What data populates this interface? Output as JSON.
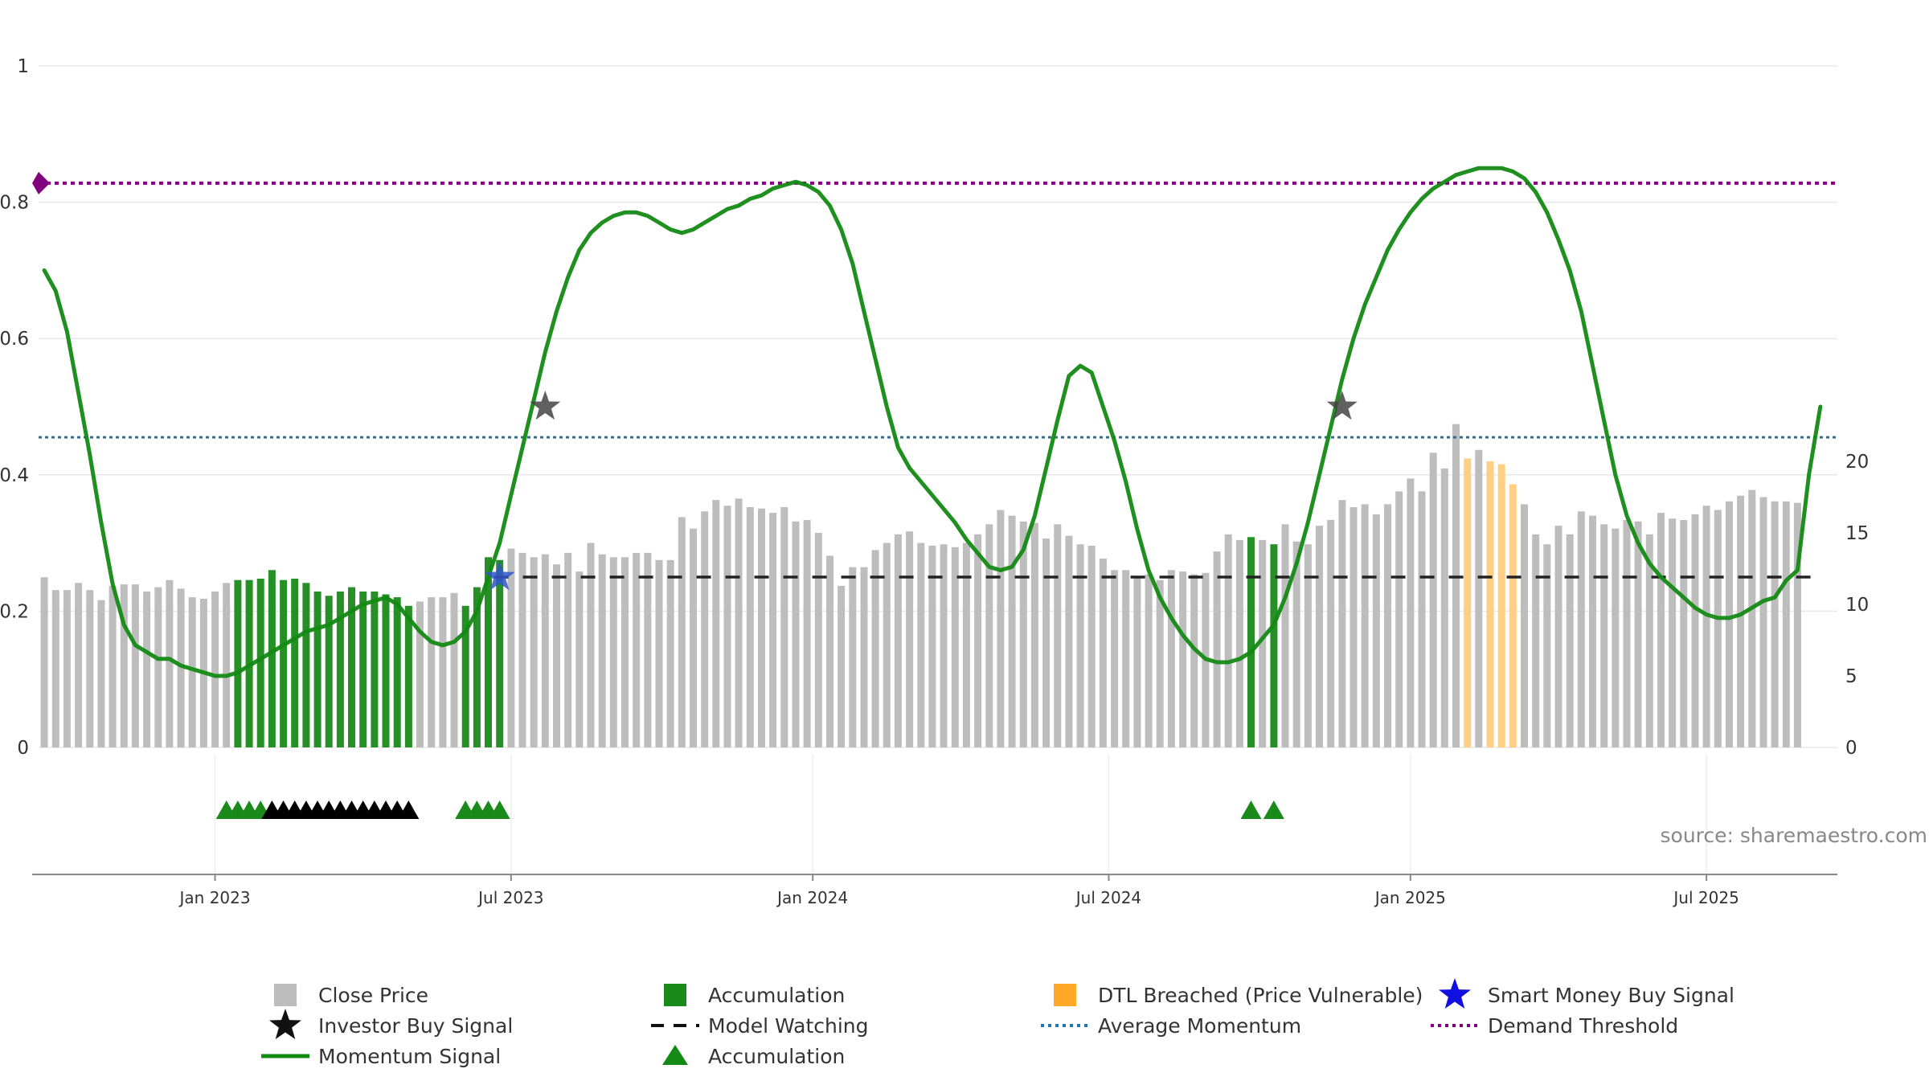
{
  "chart_data": {
    "type": "bar",
    "source_note": "source: sharemaestro.com",
    "left_axis": {
      "ticks": [
        "0",
        "0.2",
        "0.4",
        "0.6",
        "0.8",
        "1"
      ],
      "ylim": [
        0,
        1
      ]
    },
    "right_axis": {
      "ticks": [
        "0",
        "5",
        "10",
        "15",
        "20"
      ],
      "ylim": [
        0,
        20
      ]
    },
    "x_axis": {
      "ticks": [
        {
          "label": "Jan 2023",
          "week": 15.5
        },
        {
          "label": "Jul 2023",
          "week": 41.5
        },
        {
          "label": "Jan 2024",
          "week": 68
        },
        {
          "label": "Jul 2024",
          "week": 94
        },
        {
          "label": "Jan 2025",
          "week": 120.5
        },
        {
          "label": "Jul 2025",
          "week": 146.5
        }
      ],
      "range": [
        0,
        158
      ]
    },
    "bars": [
      11.9,
      11.0,
      11.0,
      11.5,
      11.0,
      10.3,
      11.3,
      11.4,
      11.4,
      10.9,
      11.2,
      11.7,
      11.1,
      10.5,
      10.4,
      10.9,
      11.5,
      11.7,
      11.7,
      11.8,
      12.4,
      11.7,
      11.8,
      11.5,
      10.9,
      10.6,
      10.9,
      11.2,
      10.9,
      10.9,
      10.7,
      10.5,
      9.9,
      10.2,
      10.5,
      10.5,
      10.8,
      9.9,
      11.2,
      13.3,
      13.1,
      13.9,
      13.6,
      13.3,
      13.5,
      12.8,
      13.6,
      12.3,
      14.3,
      13.5,
      13.3,
      13.3,
      13.6,
      13.6,
      13.1,
      13.1,
      16.1,
      15.3,
      16.5,
      17.3,
      16.9,
      17.4,
      16.8,
      16.7,
      16.4,
      16.8,
      15.8,
      15.9,
      15.0,
      13.4,
      11.3,
      12.6,
      12.6,
      13.8,
      14.3,
      14.9,
      15.1,
      14.3,
      14.1,
      14.2,
      14.0,
      14.3,
      14.9,
      15.6,
      16.6,
      16.2,
      15.8,
      15.7,
      14.6,
      15.6,
      14.8,
      14.2,
      14.1,
      13.2,
      12.4,
      12.4,
      11.9,
      12.1,
      11.7,
      12.4,
      12.3,
      12.1,
      12.2,
      13.7,
      14.9,
      14.5,
      14.7,
      14.5,
      14.2,
      15.6,
      14.4,
      14.2,
      15.5,
      15.9,
      17.3,
      16.8,
      17.0,
      16.3,
      17.0,
      17.9,
      18.8,
      17.9,
      20.6,
      19.5,
      22.6,
      20.2,
      20.8,
      20.0,
      19.8,
      18.4,
      17.0,
      14.9,
      14.2,
      15.5,
      14.9,
      16.5,
      16.2,
      15.6,
      15.3,
      15.9,
      15.8,
      14.9,
      16.4,
      16.0,
      15.9,
      16.3,
      16.9,
      16.6,
      17.2,
      17.6,
      18.0,
      17.5,
      17.2,
      17.2,
      17.1
    ],
    "accumulation_weeks": [
      17,
      18,
      19,
      20,
      21,
      22,
      23,
      24,
      25,
      26,
      27,
      28,
      29,
      30,
      31,
      32,
      37,
      38,
      39,
      40,
      106,
      108
    ],
    "dtl_breached_weeks": [
      125,
      127,
      128,
      129
    ],
    "momentum": [
      [
        0,
        0.7
      ],
      [
        1,
        0.67
      ],
      [
        2,
        0.61
      ],
      [
        3,
        0.52
      ],
      [
        4,
        0.43
      ],
      [
        5,
        0.33
      ],
      [
        6,
        0.24
      ],
      [
        7,
        0.18
      ],
      [
        8,
        0.15
      ],
      [
        9,
        0.14
      ],
      [
        10,
        0.13
      ],
      [
        11,
        0.13
      ],
      [
        12,
        0.12
      ],
      [
        13,
        0.115
      ],
      [
        14,
        0.11
      ],
      [
        15,
        0.105
      ],
      [
        16,
        0.105
      ],
      [
        17,
        0.11
      ],
      [
        18,
        0.12
      ],
      [
        19,
        0.13
      ],
      [
        20,
        0.14
      ],
      [
        21,
        0.15
      ],
      [
        22,
        0.16
      ],
      [
        23,
        0.17
      ],
      [
        24,
        0.175
      ],
      [
        25,
        0.18
      ],
      [
        26,
        0.19
      ],
      [
        27,
        0.2
      ],
      [
        28,
        0.21
      ],
      [
        29,
        0.215
      ],
      [
        30,
        0.22
      ],
      [
        31,
        0.21
      ],
      [
        32,
        0.19
      ],
      [
        33,
        0.17
      ],
      [
        34,
        0.155
      ],
      [
        35,
        0.15
      ],
      [
        36,
        0.155
      ],
      [
        37,
        0.17
      ],
      [
        38,
        0.2
      ],
      [
        39,
        0.25
      ],
      [
        40,
        0.3
      ],
      [
        41,
        0.37
      ],
      [
        42,
        0.44
      ],
      [
        43,
        0.51
      ],
      [
        44,
        0.58
      ],
      [
        45,
        0.64
      ],
      [
        46,
        0.69
      ],
      [
        47,
        0.73
      ],
      [
        48,
        0.755
      ],
      [
        49,
        0.77
      ],
      [
        50,
        0.78
      ],
      [
        51,
        0.785
      ],
      [
        52,
        0.785
      ],
      [
        53,
        0.78
      ],
      [
        54,
        0.77
      ],
      [
        55,
        0.76
      ],
      [
        56,
        0.755
      ],
      [
        57,
        0.76
      ],
      [
        58,
        0.77
      ],
      [
        59,
        0.78
      ],
      [
        60,
        0.79
      ],
      [
        61,
        0.795
      ],
      [
        62,
        0.805
      ],
      [
        63,
        0.81
      ],
      [
        64,
        0.82
      ],
      [
        65,
        0.825
      ],
      [
        66,
        0.83
      ],
      [
        67,
        0.825
      ],
      [
        68,
        0.815
      ],
      [
        69,
        0.795
      ],
      [
        70,
        0.76
      ],
      [
        71,
        0.71
      ],
      [
        72,
        0.64
      ],
      [
        73,
        0.57
      ],
      [
        74,
        0.5
      ],
      [
        75,
        0.44
      ],
      [
        76,
        0.41
      ],
      [
        77,
        0.39
      ],
      [
        78,
        0.37
      ],
      [
        79,
        0.35
      ],
      [
        80,
        0.33
      ],
      [
        81,
        0.305
      ],
      [
        82,
        0.285
      ],
      [
        83,
        0.265
      ],
      [
        84,
        0.26
      ],
      [
        85,
        0.265
      ],
      [
        86,
        0.29
      ],
      [
        87,
        0.34
      ],
      [
        88,
        0.41
      ],
      [
        89,
        0.48
      ],
      [
        90,
        0.545
      ],
      [
        91,
        0.56
      ],
      [
        92,
        0.55
      ],
      [
        93,
        0.5
      ],
      [
        94,
        0.45
      ],
      [
        95,
        0.39
      ],
      [
        96,
        0.32
      ],
      [
        97,
        0.26
      ],
      [
        98,
        0.22
      ],
      [
        99,
        0.19
      ],
      [
        100,
        0.165
      ],
      [
        101,
        0.145
      ],
      [
        102,
        0.13
      ],
      [
        103,
        0.125
      ],
      [
        104,
        0.125
      ],
      [
        105,
        0.13
      ],
      [
        106,
        0.14
      ],
      [
        107,
        0.16
      ],
      [
        108,
        0.18
      ],
      [
        109,
        0.22
      ],
      [
        110,
        0.27
      ],
      [
        111,
        0.33
      ],
      [
        112,
        0.4
      ],
      [
        113,
        0.47
      ],
      [
        114,
        0.54
      ],
      [
        115,
        0.6
      ],
      [
        116,
        0.65
      ],
      [
        117,
        0.69
      ],
      [
        118,
        0.73
      ],
      [
        119,
        0.76
      ],
      [
        120,
        0.785
      ],
      [
        121,
        0.805
      ],
      [
        122,
        0.82
      ],
      [
        123,
        0.83
      ],
      [
        124,
        0.84
      ],
      [
        125,
        0.845
      ],
      [
        126,
        0.85
      ],
      [
        127,
        0.85
      ],
      [
        128,
        0.85
      ],
      [
        129,
        0.845
      ],
      [
        130,
        0.835
      ],
      [
        131,
        0.815
      ],
      [
        132,
        0.785
      ],
      [
        133,
        0.745
      ],
      [
        134,
        0.7
      ],
      [
        135,
        0.64
      ],
      [
        136,
        0.56
      ],
      [
        137,
        0.48
      ],
      [
        138,
        0.4
      ],
      [
        139,
        0.34
      ],
      [
        140,
        0.3
      ],
      [
        141,
        0.27
      ],
      [
        142,
        0.25
      ],
      [
        143,
        0.235
      ],
      [
        144,
        0.22
      ],
      [
        145,
        0.205
      ],
      [
        146,
        0.195
      ],
      [
        147,
        0.19
      ],
      [
        148,
        0.19
      ],
      [
        149,
        0.195
      ],
      [
        150,
        0.205
      ],
      [
        151,
        0.215
      ],
      [
        152,
        0.22
      ],
      [
        153,
        0.245
      ],
      [
        154,
        0.26
      ],
      [
        155,
        0.4
      ],
      [
        156,
        0.5
      ]
    ],
    "average_momentum": 0.455,
    "demand_threshold": 0.828,
    "model_watching": {
      "level": 0.25,
      "from_week": 40,
      "to_week": 156
    },
    "investor_buy_signals": [
      {
        "week": 44,
        "value": 0.5
      },
      {
        "week": 114,
        "value": 0.5
      }
    ],
    "smart_money_buy_signals": [
      {
        "week": 40,
        "value": 0.25
      }
    ],
    "lower_panel": {
      "green_triangles": [
        16,
        17,
        18,
        19,
        37,
        38,
        39,
        40,
        106,
        108
      ],
      "black_triangles": [
        20,
        21,
        22,
        23,
        24,
        25,
        26,
        27,
        28,
        29,
        30,
        31,
        32
      ]
    },
    "legend": [
      {
        "label": "Close Price",
        "marker": "square",
        "color": "#bdbdbd"
      },
      {
        "label": "Accumulation",
        "marker": "square",
        "color": "#1a8a1a"
      },
      {
        "label": "DTL Breached (Price Vulnerable)",
        "marker": "square",
        "color": "#ffa726"
      },
      {
        "label": "Smart Money Buy Signal",
        "marker": "star",
        "color": "#1010e0"
      },
      {
        "label": "Investor Buy Signal",
        "marker": "star",
        "color": "#111111"
      },
      {
        "label": "Model Watching",
        "marker": "dash",
        "color": "#111111"
      },
      {
        "label": "Average Momentum",
        "marker": "dotted",
        "color": "#1f77b4"
      },
      {
        "label": "Demand Threshold",
        "marker": "dotted",
        "color": "#800080"
      },
      {
        "label": "Momentum Signal",
        "marker": "line",
        "color": "#138a13"
      },
      {
        "label": "Accumulation",
        "marker": "triangle",
        "color": "#138a13"
      }
    ],
    "colors": {
      "close_price": "#bdbdbd",
      "accumulation": "#1a8a1a",
      "dtl_breached": "#ffcf86",
      "momentum": "#138a13",
      "average_momentum": "#336f94",
      "demand_threshold": "#800080",
      "model_watching": "#222222",
      "investor_star": "#444444",
      "smart_money_star": "#3355cc",
      "grid": "#e8e8e8"
    }
  }
}
